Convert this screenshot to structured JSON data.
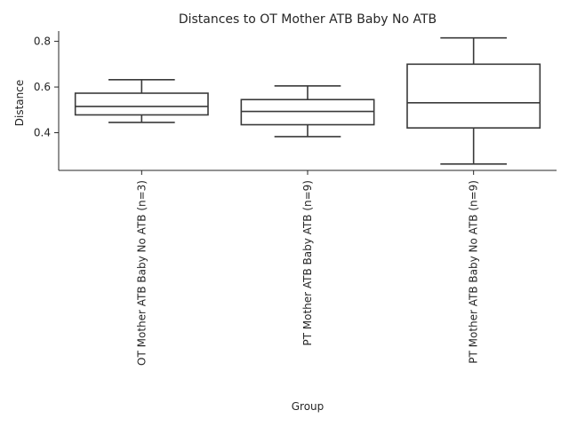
{
  "chart_data": {
    "type": "box",
    "title": "Distances to OT Mother ATB Baby No ATB",
    "xlabel": "Group",
    "ylabel": "Distance",
    "ylim": [
      0.235,
      0.845
    ],
    "yticks": [
      0.4,
      0.6,
      0.8
    ],
    "ytick_labels": [
      "0.4",
      "0.6",
      "0.8"
    ],
    "grid": false,
    "categories": [
      "OT Mother ATB Baby No ATB (n=3)",
      "PT Mother ATB Baby ATB (n=9)",
      "PT Mother ATB Baby No ATB (n=9)"
    ],
    "boxes": [
      {
        "min": 0.445,
        "q1": 0.478,
        "median": 0.515,
        "q3": 0.573,
        "max": 0.632
      },
      {
        "min": 0.383,
        "q1": 0.435,
        "median": 0.493,
        "q3": 0.545,
        "max": 0.605
      },
      {
        "min": 0.263,
        "q1": 0.421,
        "median": 0.531,
        "q3": 0.7,
        "max": 0.815
      }
    ]
  }
}
